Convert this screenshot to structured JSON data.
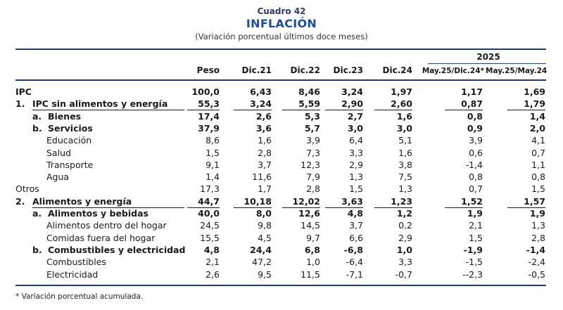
{
  "caption": {
    "number": "Cuadro 42",
    "title": "INFLACIÓN",
    "subtitle": "(Variación porcentual últimos doce meses)"
  },
  "header": {
    "year_group": "2025",
    "columns": [
      "Peso",
      "Dic.21",
      "Dic.22",
      "Dic.23",
      "Dic.24",
      "May.25/Dic.24*",
      "May.25/May.24"
    ]
  },
  "rows": [
    {
      "num": "",
      "sub": "",
      "label": "IPC",
      "style": "bold",
      "indent": 0,
      "values": [
        "100,0",
        "6,43",
        "8,46",
        "3,24",
        "1,97",
        "1,17",
        "1,69"
      ]
    },
    {
      "num": "1.",
      "sub": "",
      "label": "IPC sin alimentos y energía",
      "style": "bold-ul",
      "indent": 0,
      "values": [
        "55,3",
        "3,24",
        "5,59",
        "2,90",
        "2,60",
        "0,87",
        "1,79"
      ]
    },
    {
      "num": "",
      "sub": "a.",
      "label": "Bienes",
      "style": "bold",
      "indent": 1,
      "values": [
        "17,4",
        "2,6",
        "5,3",
        "2,7",
        "1,6",
        "0,8",
        "1,4"
      ]
    },
    {
      "num": "",
      "sub": "b.",
      "label": "Servicios",
      "style": "bold",
      "indent": 1,
      "values": [
        "37,9",
        "3,6",
        "5,7",
        "3,0",
        "3,0",
        "0,9",
        "2,0"
      ]
    },
    {
      "num": "",
      "sub": "",
      "label": "Educación",
      "style": "normal",
      "indent": 2,
      "values": [
        "8,6",
        "1,6",
        "3,9",
        "6,4",
        "5,1",
        "3,9",
        "4,1"
      ]
    },
    {
      "num": "",
      "sub": "",
      "label": "Salud",
      "style": "normal",
      "indent": 2,
      "values": [
        "1,5",
        "2,8",
        "7,3",
        "3,3",
        "1,6",
        "0,6",
        "0,7"
      ]
    },
    {
      "num": "",
      "sub": "",
      "label": "Transporte",
      "style": "normal",
      "indent": 2,
      "values": [
        "9,1",
        "3,7",
        "12,3",
        "2,9",
        "3,8",
        "-1,4",
        "1,1"
      ]
    },
    {
      "num": "",
      "sub": "",
      "label": "Agua",
      "style": "normal",
      "indent": 2,
      "values": [
        "1,4",
        "11,6",
        "7,9",
        "1,3",
        "7,5",
        "0,8",
        "0,8"
      ]
    },
    {
      "num": "",
      "sub": "",
      "label": "Otros",
      "style": "normal",
      "indent": 0,
      "values": [
        "17,3",
        "1,7",
        "2,8",
        "1,5",
        "1,3",
        "0,7",
        "1,5"
      ]
    },
    {
      "num": "2.",
      "sub": "",
      "label": "Alimentos y energía",
      "style": "bold-ul",
      "indent": 0,
      "values": [
        "44,7",
        "10,18",
        "12,02",
        "3,63",
        "1,23",
        "1,52",
        "1,57"
      ]
    },
    {
      "num": "",
      "sub": "a.",
      "label": "Alimentos y bebidas",
      "style": "bold",
      "indent": 1,
      "values": [
        "40,0",
        "8,0",
        "12,6",
        "4,8",
        "1,2",
        "1,9",
        "1,9"
      ]
    },
    {
      "num": "",
      "sub": "",
      "label": "Alimentos dentro del hogar",
      "style": "normal",
      "indent": 2,
      "values": [
        "24,5",
        "9,8",
        "14,5",
        "3,7",
        "0,2",
        "2,1",
        "1,3"
      ]
    },
    {
      "num": "",
      "sub": "",
      "label": "Comidas fuera del hogar",
      "style": "normal",
      "indent": 2,
      "values": [
        "15,5",
        "4,5",
        "9,7",
        "6,6",
        "2,9",
        "1,5",
        "2,8"
      ]
    },
    {
      "num": "",
      "sub": "b.",
      "label": "Combustibles y electricidad",
      "style": "bold",
      "indent": 1,
      "values": [
        "4,8",
        "24,4",
        "6,8",
        "-6,8",
        "1,0",
        "-1,9",
        "-1,4"
      ]
    },
    {
      "num": "",
      "sub": "",
      "label": "Combustibles",
      "style": "normal",
      "indent": 2,
      "values": [
        "2,1",
        "47,2",
        "1,0",
        "-6,4",
        "3,3",
        "-1,5",
        "-2,4"
      ]
    },
    {
      "num": "",
      "sub": "",
      "label": "Electricidad",
      "style": "normal",
      "indent": 2,
      "values": [
        "2,6",
        "9,5",
        "11,5",
        "-7,1",
        "-0,7",
        "--2,3",
        "-0,5"
      ]
    }
  ],
  "footnote": "* Variación porcentual acumulada."
}
